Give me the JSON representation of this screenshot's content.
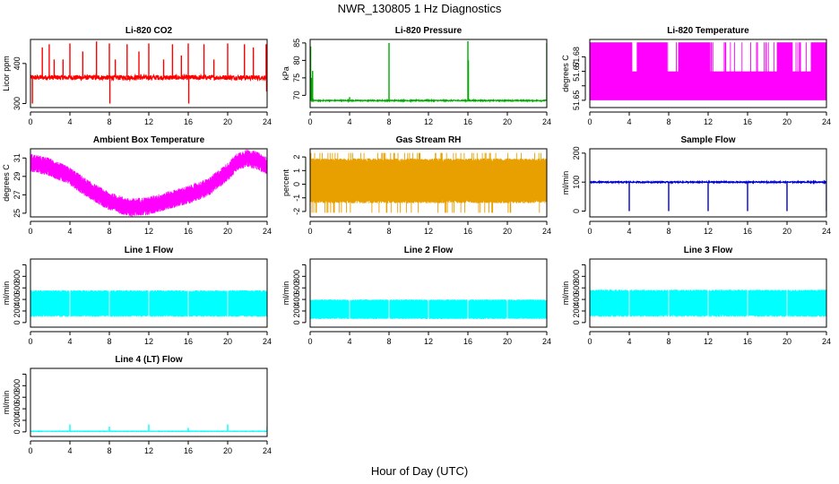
{
  "page": {
    "title": "NWR_130805  1 Hz Diagnostics",
    "xlabel": "Hour of Day (UTC)"
  },
  "chart_data": [
    {
      "type": "line",
      "id": "li820-co2",
      "title": "Li-820 CO2",
      "ylabel": "Licor ppm",
      "xlabel": "",
      "color": "#ff0000",
      "xlim": [
        0,
        24
      ],
      "ylim": [
        290,
        460
      ],
      "xticks": [
        0,
        4,
        8,
        12,
        16,
        20,
        24
      ],
      "yticks": [
        300,
        400
      ],
      "baseline": 365,
      "noise": 6,
      "spikes": [
        [
          0.2,
          300
        ],
        [
          1.2,
          440
        ],
        [
          1.9,
          448
        ],
        [
          2.4,
          410
        ],
        [
          3.3,
          410
        ],
        [
          4.0,
          450
        ],
        [
          5.3,
          430
        ],
        [
          6.7,
          455
        ],
        [
          8.0,
          450
        ],
        [
          8.05,
          300
        ],
        [
          8.6,
          410
        ],
        [
          9.8,
          448
        ],
        [
          11.0,
          430
        ],
        [
          12.0,
          450
        ],
        [
          13.5,
          410
        ],
        [
          14.4,
          448
        ],
        [
          15.3,
          420
        ],
        [
          16.0,
          450
        ],
        [
          16.05,
          300
        ],
        [
          17.6,
          448
        ],
        [
          18.6,
          410
        ],
        [
          20.0,
          450
        ],
        [
          21.7,
          448
        ],
        [
          22.6,
          440
        ],
        [
          23.9,
          448
        ],
        [
          23.95,
          330
        ]
      ]
    },
    {
      "type": "line",
      "id": "li820-pressure",
      "title": "Li-820 Pressure",
      "ylabel": "kPa",
      "xlabel": "",
      "color": "#00aa00",
      "xlim": [
        0,
        24
      ],
      "ylim": [
        66.5,
        86
      ],
      "xticks": [
        0,
        4,
        8,
        12,
        16,
        20,
        24
      ],
      "yticks": [
        70,
        75,
        80,
        85
      ],
      "baseline": 68.5,
      "noise": 0.15,
      "spikes": [
        [
          0.05,
          84
        ],
        [
          0.15,
          75
        ],
        [
          0.25,
          77
        ],
        [
          4.0,
          69.5
        ],
        [
          8.0,
          85
        ],
        [
          16.0,
          85.5
        ],
        [
          16.05,
          80
        ],
        [
          24.0,
          85
        ]
      ]
    },
    {
      "type": "band",
      "id": "li820-temperature",
      "title": "Li-820 Temperature",
      "ylabel": "degrees C",
      "xlabel": "",
      "color": "#ff00ff",
      "xlim": [
        0,
        24
      ],
      "ylim": [
        51.645,
        51.692
      ],
      "xticks": [
        0,
        4,
        8,
        12,
        16,
        20,
        24
      ],
      "yticks": [
        51.65,
        51.66,
        51.67,
        51.68
      ],
      "ytick_labels": [
        "51.65",
        "",
        "51.67",
        "51.68"
      ],
      "band_low": 51.65,
      "band_high": 51.67,
      "upper_level": 51.69,
      "upper_dense_ranges": [
        [
          0,
          4.2
        ],
        [
          4.8,
          7.8
        ],
        [
          9,
          12.2
        ],
        [
          19,
          20.5
        ],
        [
          22.5,
          24
        ]
      ]
    },
    {
      "type": "band",
      "id": "ambient-box-temperature",
      "title": "Ambient Box Temperature",
      "ylabel": "degrees C",
      "xlabel": "",
      "color": "#ff00ff",
      "xlim": [
        0,
        24
      ],
      "ylim": [
        24.6,
        32
      ],
      "xticks": [
        0,
        4,
        8,
        12,
        16,
        20,
        24
      ],
      "yticks": [
        25,
        27,
        29,
        31
      ],
      "curve_hours": [
        0,
        2,
        4,
        6,
        8,
        10,
        12,
        14,
        16,
        18,
        20,
        21,
        22,
        23,
        24
      ],
      "curve_values": [
        30.5,
        30.0,
        29.0,
        27.5,
        26.3,
        25.6,
        25.8,
        26.4,
        27.0,
        27.8,
        29.5,
        30.6,
        31.0,
        30.7,
        30.1
      ],
      "band_width": 0.9
    },
    {
      "type": "band",
      "id": "gas-stream-rh",
      "title": "Gas Stream RH",
      "ylabel": "percent",
      "xlabel": "",
      "color": "#e8a000",
      "xlim": [
        0,
        24
      ],
      "ylim": [
        -2.4,
        2.6
      ],
      "xticks": [
        0,
        4,
        8,
        12,
        16,
        20,
        24
      ],
      "yticks": [
        -2,
        -1,
        0,
        1,
        2
      ],
      "band_low": -1.4,
      "band_high": 1.9,
      "extreme_low": -2.1,
      "extreme_high": 2.3
    },
    {
      "type": "line",
      "id": "sample-flow",
      "title": "Sample Flow",
      "ylabel": "ml/min",
      "xlabel": "",
      "color": "#0000cc",
      "xlim": [
        0,
        24
      ],
      "ylim": [
        -20,
        215
      ],
      "xticks": [
        0,
        4,
        8,
        12,
        16,
        20,
        24
      ],
      "yticks": [
        0,
        100,
        200
      ],
      "baseline": 100,
      "noise": 2,
      "spikes": [
        [
          4.0,
          0
        ],
        [
          8.0,
          0
        ],
        [
          12.0,
          0
        ],
        [
          16.0,
          0
        ],
        [
          20.0,
          0
        ],
        [
          24.0,
          0
        ]
      ]
    },
    {
      "type": "band",
      "id": "line-1-flow",
      "title": "Line 1 Flow",
      "ylabel": "ml/min",
      "xlabel": "",
      "color": "#00ffff",
      "xlim": [
        0,
        24
      ],
      "ylim": [
        -80,
        1100
      ],
      "xticks": [
        0,
        4,
        8,
        12,
        16,
        20,
        24
      ],
      "yticks": [
        0,
        200,
        400,
        600,
        800,
        1000
      ],
      "ytick_labels": [
        "0",
        "200",
        "400",
        "600",
        "800",
        ""
      ],
      "band_low": 100,
      "band_high": 560,
      "gaps": [
        4,
        8,
        12,
        16,
        20
      ]
    },
    {
      "type": "band",
      "id": "line-2-flow",
      "title": "Line 2 Flow",
      "ylabel": "ml/min",
      "xlabel": "",
      "color": "#00ffff",
      "xlim": [
        0,
        24
      ],
      "ylim": [
        -80,
        1100
      ],
      "xticks": [
        0,
        4,
        8,
        12,
        16,
        20,
        24
      ],
      "yticks": [
        0,
        200,
        400,
        600,
        800,
        1000
      ],
      "ytick_labels": [
        "0",
        "200",
        "400",
        "600",
        "800",
        ""
      ],
      "band_low": 60,
      "band_high": 400,
      "gaps": [
        4,
        8,
        12,
        16,
        20
      ]
    },
    {
      "type": "band",
      "id": "line-3-flow",
      "title": "Line 3 Flow",
      "ylabel": "ml/min",
      "xlabel": "",
      "color": "#00ffff",
      "xlim": [
        0,
        24
      ],
      "ylim": [
        -80,
        1100
      ],
      "xticks": [
        0,
        4,
        8,
        12,
        16,
        20,
        24
      ],
      "yticks": [
        0,
        200,
        400,
        600,
        800,
        1000
      ],
      "ytick_labels": [
        "0",
        "200",
        "400",
        "600",
        "800",
        ""
      ],
      "band_low": 100,
      "band_high": 570,
      "gaps": [
        4,
        8,
        12,
        16,
        20
      ]
    },
    {
      "type": "line",
      "id": "line-4-lt-flow",
      "title": "Line 4 (LT) Flow",
      "ylabel": "ml/min",
      "xlabel": "",
      "color": "#00ffff",
      "xlim": [
        0,
        24
      ],
      "ylim": [
        -80,
        1100
      ],
      "xticks": [
        0,
        4,
        8,
        12,
        16,
        20,
        24
      ],
      "yticks": [
        0,
        200,
        400,
        600,
        800,
        1000
      ],
      "ytick_labels": [
        "0",
        "200",
        "400",
        "600",
        "800",
        ""
      ],
      "baseline": 10,
      "noise": 3,
      "spikes": [
        [
          4.0,
          130
        ],
        [
          8.0,
          90
        ],
        [
          12.0,
          130
        ],
        [
          16.0,
          70
        ],
        [
          20.0,
          130
        ],
        [
          24.0,
          90
        ]
      ]
    }
  ]
}
